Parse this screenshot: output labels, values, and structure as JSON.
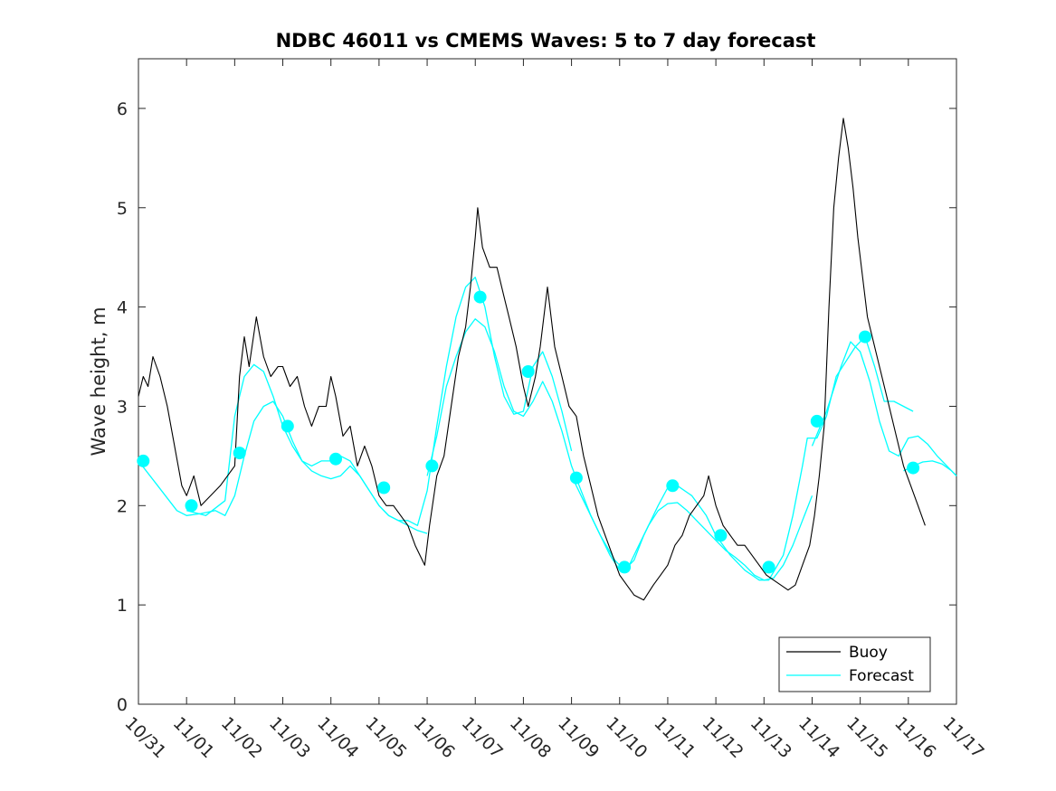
{
  "chart_data": {
    "type": "line",
    "title": "NDBC 46011 vs CMEMS Waves: 5 to 7 day forecast",
    "xlabel": "",
    "ylabel": "Wave height, m",
    "xlim": [
      0,
      17
    ],
    "ylim": [
      0,
      6.5
    ],
    "x_tick_values": [
      0,
      1,
      2,
      3,
      4,
      5,
      6,
      7,
      8,
      9,
      10,
      11,
      12,
      13,
      14,
      15,
      16,
      17
    ],
    "x_tick_labels": [
      "10/31",
      "11/01",
      "11/02",
      "11/03",
      "11/04",
      "11/05",
      "11/06",
      "11/07",
      "11/08",
      "11/09",
      "11/10",
      "11/11",
      "11/12",
      "11/13",
      "11/14",
      "11/15",
      "11/16",
      "11/17"
    ],
    "y_ticks": [
      0,
      1,
      2,
      3,
      4,
      5,
      6
    ],
    "grid": false,
    "legend": {
      "position": "bottom-right",
      "entries": [
        "Buoy",
        "Forecast"
      ]
    },
    "colors": {
      "buoy": "#000000",
      "forecast": "#00ffff"
    },
    "series": [
      {
        "name": "Buoy",
        "x": [
          0.0,
          0.1,
          0.2,
          0.3,
          0.45,
          0.6,
          0.75,
          0.9,
          1.0,
          1.15,
          1.3,
          1.5,
          1.7,
          1.85,
          2.0,
          2.1,
          2.2,
          2.3,
          2.45,
          2.6,
          2.75,
          2.9,
          3.0,
          3.15,
          3.3,
          3.45,
          3.6,
          3.75,
          3.9,
          4.0,
          4.1,
          4.25,
          4.4,
          4.55,
          4.7,
          4.85,
          5.0,
          5.15,
          5.3,
          5.45,
          5.6,
          5.75,
          5.85,
          5.95,
          6.05,
          6.2,
          6.35,
          6.5,
          6.65,
          6.8,
          6.9,
          7.0,
          7.05,
          7.15,
          7.3,
          7.45,
          7.6,
          7.7,
          7.85,
          8.0,
          8.1,
          8.25,
          8.35,
          8.5,
          8.65,
          8.8,
          8.95,
          9.1,
          9.25,
          9.4,
          9.55,
          9.7,
          9.85,
          10.0,
          10.15,
          10.3,
          10.5,
          10.7,
          10.85,
          11.0,
          11.15,
          11.3,
          11.45,
          11.6,
          11.75,
          11.85,
          12.0,
          12.15,
          12.3,
          12.45,
          12.6,
          12.75,
          12.9,
          13.05,
          13.2,
          13.35,
          13.5,
          13.65,
          13.8,
          13.95,
          14.05,
          14.15,
          14.25,
          14.35,
          14.45,
          14.55,
          14.65,
          14.75,
          14.85,
          14.95,
          15.05,
          15.15,
          15.3,
          15.45,
          15.6,
          15.75,
          15.9,
          16.05,
          16.2,
          16.35
        ],
        "y": [
          3.1,
          3.3,
          3.2,
          3.5,
          3.3,
          3.0,
          2.6,
          2.2,
          2.1,
          2.3,
          2.0,
          2.1,
          2.2,
          2.3,
          2.4,
          3.3,
          3.7,
          3.4,
          3.9,
          3.5,
          3.3,
          3.4,
          3.4,
          3.2,
          3.3,
          3.0,
          2.8,
          3.0,
          3.0,
          3.3,
          3.1,
          2.7,
          2.8,
          2.4,
          2.6,
          2.4,
          2.1,
          2.0,
          2.0,
          1.9,
          1.8,
          1.6,
          1.5,
          1.4,
          1.8,
          2.3,
          2.5,
          3.0,
          3.5,
          3.8,
          4.2,
          4.7,
          5.0,
          4.6,
          4.4,
          4.4,
          4.1,
          3.9,
          3.6,
          3.2,
          3.0,
          3.3,
          3.6,
          4.2,
          3.6,
          3.3,
          3.0,
          2.9,
          2.5,
          2.2,
          1.9,
          1.7,
          1.5,
          1.3,
          1.2,
          1.1,
          1.05,
          1.2,
          1.3,
          1.4,
          1.6,
          1.7,
          1.9,
          2.0,
          2.1,
          2.3,
          2.0,
          1.8,
          1.7,
          1.6,
          1.6,
          1.5,
          1.4,
          1.3,
          1.25,
          1.2,
          1.15,
          1.2,
          1.4,
          1.6,
          1.9,
          2.3,
          2.8,
          4.0,
          5.0,
          5.5,
          5.9,
          5.6,
          5.2,
          4.7,
          4.3,
          3.9,
          3.6,
          3.3,
          3.0,
          2.7,
          2.4,
          2.2,
          2.0,
          1.8
        ]
      },
      {
        "name": "Forecast",
        "segments": [
          {
            "x": [
              0.0,
              0.4,
              0.8,
              1.0,
              1.3,
              1.6,
              1.8,
              2.0,
              2.2,
              2.4,
              2.6,
              2.8,
              3.0,
              3.2,
              3.4,
              3.6,
              3.8,
              4.0,
              4.2,
              4.4,
              4.6,
              4.8,
              5.0,
              5.2,
              5.4,
              5.6,
              5.8,
              6.0
            ],
            "y": [
              2.45,
              2.2,
              1.95,
              1.9,
              1.92,
              1.95,
              1.9,
              2.1,
              2.5,
              2.85,
              3.0,
              3.05,
              2.9,
              2.65,
              2.45,
              2.35,
              2.3,
              2.27,
              2.3,
              2.4,
              2.3,
              2.15,
              2.0,
              1.9,
              1.85,
              1.8,
              1.75,
              1.72
            ]
          },
          {
            "x": [
              1.0,
              1.4,
              1.8,
              2.0,
              2.2,
              2.4,
              2.6,
              2.8,
              3.0,
              3.2,
              3.4,
              3.6,
              3.8,
              4.0,
              4.2,
              4.4,
              4.6,
              4.8,
              5.0,
              5.2,
              5.4,
              5.6,
              5.8,
              6.0,
              6.2,
              6.4,
              6.6,
              6.8,
              7.0,
              7.2,
              7.4,
              7.6,
              7.8,
              8.0,
              8.2,
              8.4,
              8.6,
              8.8,
              9.0
            ],
            "y": [
              1.95,
              1.9,
              2.05,
              2.9,
              3.3,
              3.42,
              3.35,
              3.1,
              2.8,
              2.6,
              2.45,
              2.4,
              2.45,
              2.45,
              2.5,
              2.45,
              2.3,
              2.15,
              2.0,
              1.9,
              1.85,
              1.85,
              1.8,
              2.15,
              2.8,
              3.4,
              3.9,
              4.2,
              4.3,
              4.0,
              3.5,
              3.1,
              2.92,
              2.95,
              3.4,
              3.55,
              3.3,
              2.95,
              2.55
            ]
          },
          {
            "x": [
              6.0,
              6.2,
              6.4,
              6.6,
              6.8,
              7.0,
              7.2,
              7.4,
              7.6,
              7.8,
              8.0,
              8.2,
              8.4,
              8.6,
              8.8,
              9.0,
              9.2,
              9.4,
              9.6,
              9.8,
              10.0,
              10.2,
              10.4,
              10.6,
              10.8,
              11.0,
              11.2,
              11.4,
              11.6,
              11.8,
              12.0,
              12.2,
              12.4,
              12.6,
              12.8,
              13.0,
              13.2,
              13.4,
              13.6,
              13.8,
              14.0
            ],
            "y": [
              2.3,
              2.7,
              3.2,
              3.5,
              3.75,
              3.88,
              3.8,
              3.55,
              3.2,
              2.95,
              2.9,
              3.05,
              3.25,
              3.05,
              2.75,
              2.4,
              2.15,
              1.9,
              1.7,
              1.5,
              1.35,
              1.4,
              1.6,
              1.8,
              1.95,
              2.02,
              2.03,
              1.95,
              1.85,
              1.75,
              1.65,
              1.55,
              1.48,
              1.4,
              1.3,
              1.25,
              1.27,
              1.4,
              1.6,
              1.85,
              2.1
            ]
          },
          {
            "x": [
              9.0,
              9.3,
              9.6,
              9.9,
              10.1,
              10.3,
              10.5,
              10.8,
              11.0,
              11.2,
              11.5,
              11.8,
              12.0,
              12.3,
              12.6,
              12.9,
              13.1,
              13.4,
              13.6,
              13.8,
              13.9,
              14.1,
              14.3,
              14.5,
              14.7,
              14.9,
              15.1,
              15.3,
              15.5,
              15.7,
              15.9,
              16.1
            ],
            "y": [
              2.3,
              2.0,
              1.7,
              1.45,
              1.35,
              1.45,
              1.7,
              2.0,
              2.18,
              2.2,
              2.1,
              1.9,
              1.7,
              1.5,
              1.35,
              1.25,
              1.25,
              1.5,
              1.9,
              2.4,
              2.68,
              2.68,
              2.9,
              3.3,
              3.45,
              3.6,
              3.7,
              3.4,
              3.05,
              3.05,
              3.0,
              2.95
            ]
          },
          {
            "x": [
              14.0,
              14.3,
              14.6,
              14.8,
              15.0,
              15.2,
              15.4,
              15.6,
              15.8,
              16.0,
              16.2,
              16.4,
              16.6,
              16.8,
              17.0
            ],
            "y": [
              2.6,
              2.95,
              3.4,
              3.65,
              3.55,
              3.25,
              2.85,
              2.55,
              2.5,
              2.68,
              2.7,
              2.62,
              2.5,
              2.4,
              2.3
            ]
          },
          {
            "x": [
              15.9,
              16.1,
              16.3,
              16.5,
              16.7,
              16.9,
              17.0
            ],
            "y": [
              2.35,
              2.4,
              2.44,
              2.45,
              2.42,
              2.35,
              2.3
            ]
          }
        ],
        "markers": {
          "x": [
            0.1,
            1.1,
            2.1,
            3.1,
            4.1,
            5.1,
            6.1,
            7.1,
            8.1,
            9.1,
            10.1,
            11.1,
            12.1,
            13.1,
            14.1,
            15.1,
            16.1
          ],
          "y": [
            2.45,
            2.0,
            2.53,
            2.8,
            2.47,
            2.18,
            2.4,
            4.1,
            3.35,
            2.28,
            1.38,
            2.2,
            1.7,
            1.38,
            2.85,
            3.7,
            2.38
          ]
        }
      }
    ]
  }
}
